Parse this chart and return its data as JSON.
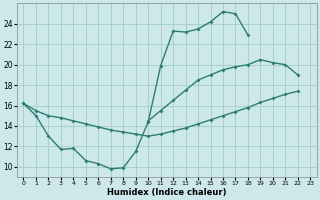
{
  "xlabel": "Humidex (Indice chaleur)",
  "bg_color": "#cce8ea",
  "grid_color": "#aacfcf",
  "line_color": "#2e7d72",
  "xlim": [
    -0.5,
    23.5
  ],
  "ylim": [
    9.0,
    26.0
  ],
  "xtick_vals": [
    0,
    1,
    2,
    3,
    4,
    5,
    6,
    7,
    8,
    9,
    10,
    11,
    12,
    13,
    14,
    15,
    16,
    17,
    18,
    19,
    20,
    21,
    22,
    23
  ],
  "ytick_vals": [
    10,
    12,
    14,
    16,
    18,
    20,
    22,
    24
  ],
  "curve_upper_x": [
    0,
    1,
    2,
    3,
    4,
    5,
    6,
    7,
    8,
    9,
    10,
    11,
    12,
    13,
    14,
    15,
    16,
    17,
    18
  ],
  "curve_upper_y": [
    16.2,
    15.0,
    13.0,
    11.7,
    11.8,
    10.6,
    10.3,
    9.8,
    9.9,
    11.5,
    14.4,
    19.9,
    23.3,
    23.2,
    23.5,
    24.2,
    25.2,
    25.0,
    22.9
  ],
  "curve_diag_x": [
    0,
    1,
    2,
    3,
    4,
    5,
    6,
    7,
    8,
    9,
    10,
    11,
    12,
    13,
    14,
    15,
    16,
    17,
    18,
    19,
    20,
    21,
    22
  ],
  "curve_diag_y": [
    16.2,
    15.5,
    15.0,
    14.8,
    14.5,
    14.2,
    13.9,
    13.6,
    13.4,
    13.2,
    13.0,
    13.2,
    13.5,
    13.8,
    14.2,
    14.6,
    15.0,
    15.4,
    15.8,
    16.3,
    16.7,
    17.1,
    17.4
  ],
  "curve_mid_x": [
    10,
    11,
    12,
    13,
    14,
    15,
    16,
    17,
    18,
    19,
    20,
    21,
    22
  ],
  "curve_mid_y": [
    14.5,
    15.5,
    16.5,
    17.5,
    18.5,
    19.0,
    19.5,
    19.8,
    20.0,
    20.5,
    20.2,
    20.0,
    19.0
  ]
}
